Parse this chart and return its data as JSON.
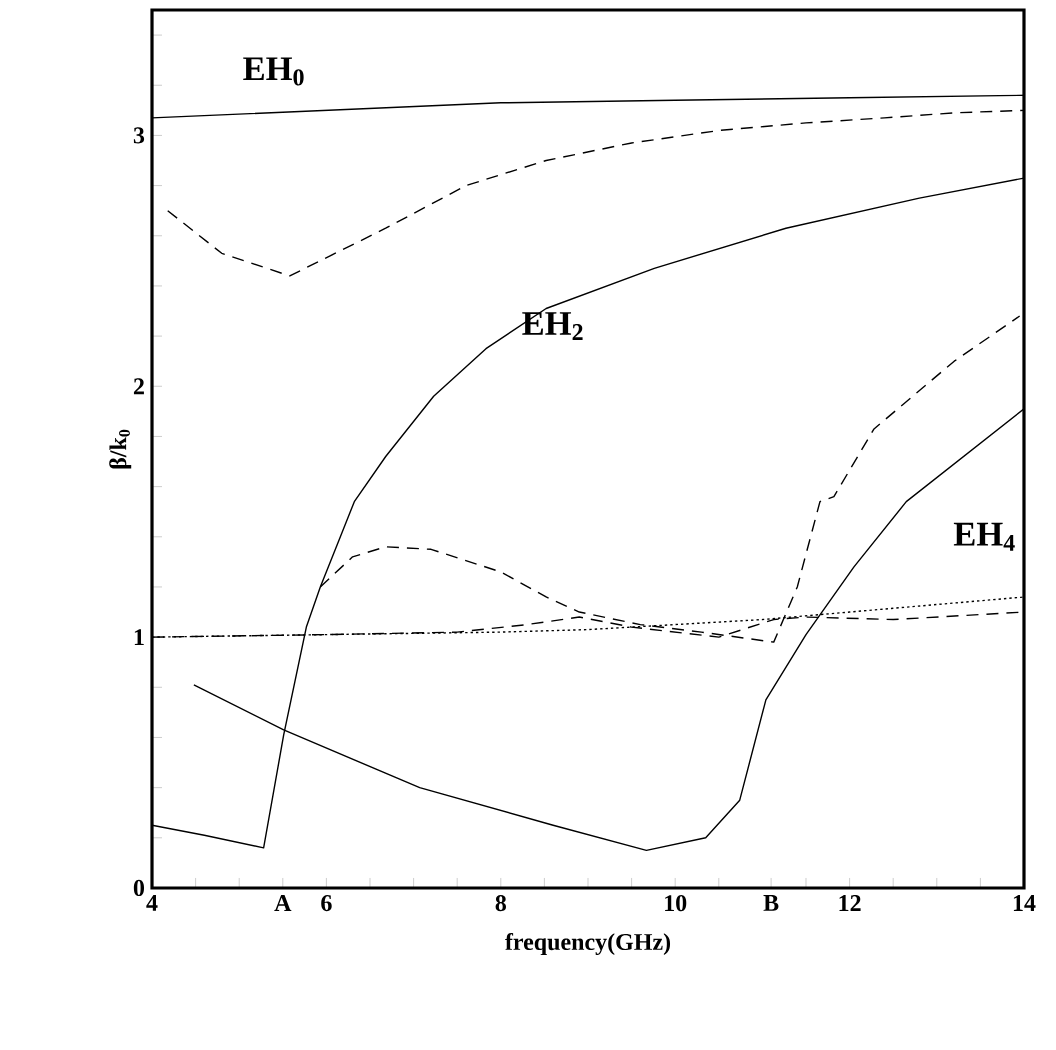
{
  "chart_data": {
    "type": "line",
    "xlabel": "frequency(GHz)",
    "ylabel": "β/k$_{0}$",
    "xlim": [
      4,
      14
    ],
    "ylim": [
      0,
      3.5
    ],
    "xticks": [
      4,
      {
        "value": 4.5,
        "label": null
      },
      {
        "value": 5,
        "label": null
      },
      {
        "value": 5.5,
        "label": "A"
      },
      6,
      {
        "value": 6.5,
        "label": null
      },
      {
        "value": 7,
        "label": null
      },
      {
        "value": 7.5,
        "label": null
      },
      8,
      {
        "value": 8.5,
        "label": null
      },
      {
        "value": 9,
        "label": null
      },
      {
        "value": 9.5,
        "label": null
      },
      10,
      {
        "value": 10.5,
        "label": null
      },
      {
        "value": 11.1,
        "label": "B"
      },
      {
        "value": 11.5,
        "label": null
      },
      12,
      {
        "value": 12.5,
        "label": null
      },
      {
        "value": 13,
        "label": null
      },
      {
        "value": 13.5,
        "label": null
      },
      14
    ],
    "yticks": [
      0,
      {
        "value": 0.2,
        "label": null
      },
      {
        "value": 0.4,
        "label": null
      },
      {
        "value": 0.6,
        "label": null
      },
      {
        "value": 0.8,
        "label": null
      },
      1,
      {
        "value": 1.2,
        "label": null
      },
      {
        "value": 1.4,
        "label": null
      },
      {
        "value": 1.6,
        "label": null
      },
      {
        "value": 1.8,
        "label": null
      },
      2,
      {
        "value": 2.2,
        "label": null
      },
      {
        "value": 2.4,
        "label": null
      },
      {
        "value": 2.6,
        "label": null
      },
      {
        "value": 2.8,
        "label": null
      },
      3,
      {
        "value": 3.2,
        "label": null
      },
      {
        "value": 3.4,
        "label": null
      }
    ],
    "grid": false,
    "annotations": [
      "EH$_{0}$",
      "EH$_{2}$",
      "EH$_{4}$"
    ],
    "series": [
      {
        "color": "#000000",
        "line_style": "solid",
        "x": [
          4,
          6,
          8,
          10,
          12,
          14
        ],
        "values": [
          3.07,
          3.1,
          3.13,
          3.14,
          3.15,
          3.16
        ]
      },
      {
        "color": "#000000",
        "line_style": "dashed",
        "x": [
          4.18,
          4.8,
          5.58,
          6.68,
          7.6,
          8.52,
          9.5,
          10.51,
          11.5,
          12.4,
          13.2,
          14
        ],
        "values": [
          2.7,
          2.53,
          2.44,
          2.63,
          2.8,
          2.9,
          2.97,
          3.02,
          3.05,
          3.07,
          3.09,
          3.1
        ]
      },
      {
        "color": "#000000",
        "line_style": "solid",
        "x": [
          4,
          4.6,
          5.28,
          5.51,
          5.77,
          5.93,
          6.16,
          6.32,
          6.68,
          7.23,
          7.83,
          8.52,
          9.76,
          11.27,
          12.8,
          14
        ],
        "values": [
          0.25,
          0.21,
          0.16,
          0.61,
          1.04,
          1.2,
          1.4,
          1.54,
          1.72,
          1.96,
          2.15,
          2.31,
          2.47,
          2.63,
          2.75,
          2.83
        ]
      },
      {
        "color": "#000000",
        "line_style": "dashed",
        "x": [
          5.93,
          6.3,
          6.68,
          7.2,
          8,
          8.52,
          8.9,
          9.6,
          10.3,
          11.13,
          11.4,
          11.66,
          11.82,
          12.28,
          13.2,
          13.95
        ],
        "values": [
          1.2,
          1.32,
          1.36,
          1.35,
          1.26,
          1.16,
          1.1,
          1.05,
          1.02,
          0.98,
          1.2,
          1.54,
          1.56,
          1.83,
          2.1,
          2.28
        ]
      },
      {
        "color": "#000000",
        "line_style": "dashed",
        "x": [
          4,
          6,
          7.5,
          8.3,
          8.9,
          9.5,
          10.5,
          11.13,
          11.5,
          12.5,
          14
        ],
        "values": [
          1,
          1.01,
          1.02,
          1.05,
          1.08,
          1.04,
          1.0,
          1.07,
          1.08,
          1.07,
          1.1
        ]
      },
      {
        "color": "#000000",
        "line_style": "dotted",
        "x": [
          4,
          6,
          8,
          9,
          10,
          11,
          12,
          13,
          14
        ],
        "values": [
          1,
          1.01,
          1.02,
          1.03,
          1.05,
          1.07,
          1.1,
          1.13,
          1.16
        ]
      },
      {
        "color": "#000000",
        "line_style": "solid",
        "x": [
          4.48,
          5.51,
          7.07,
          8.6,
          9.67,
          10.35,
          10.74,
          11.04,
          11.5,
          12.05,
          12.65,
          14
        ],
        "values": [
          0.81,
          0.63,
          0.4,
          0.25,
          0.15,
          0.2,
          0.35,
          0.75,
          1.01,
          1.28,
          1.54,
          1.91
        ]
      }
    ]
  }
}
